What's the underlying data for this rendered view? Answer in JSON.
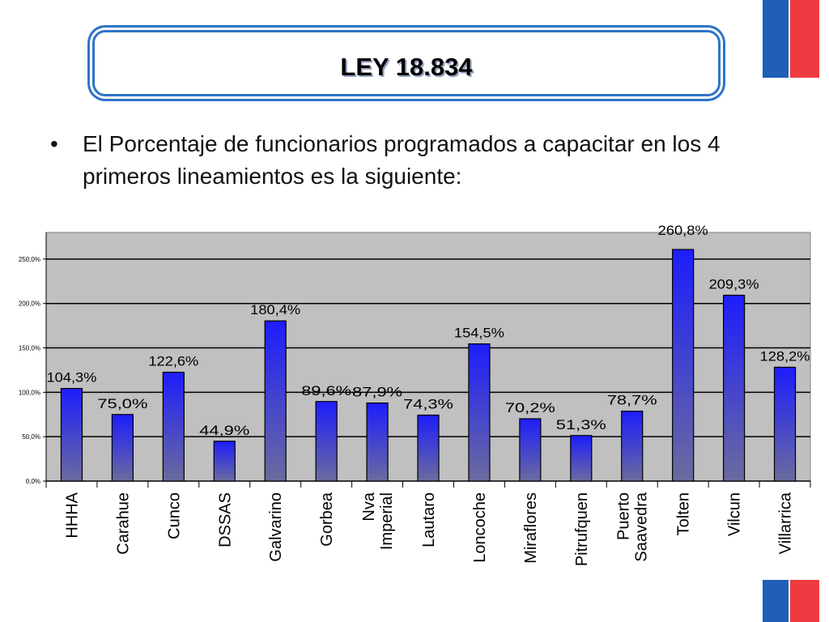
{
  "title": "LEY 18.834",
  "bullet": {
    "symbol": "•",
    "text": "El Porcentaje de funcionarios programados a capacitar en los 4 primeros lineamientos es la siguiente:"
  },
  "colors": {
    "flag_blue": "#1f5fb8",
    "flag_red": "#ee3b42",
    "plot_bg": "#c0c0c0",
    "bar_top": "#1d1dfc",
    "bar_bottom": "#6b6b9e",
    "title_border": "#2e74c9"
  },
  "chart_data": {
    "type": "bar",
    "categories": [
      "HHHA",
      "Carahue",
      "Cunco",
      "DSSAS",
      "Galvarino",
      "Gorbea",
      "Nva Imperial",
      "Lautaro",
      "Loncoche",
      "Miraflores",
      "Pitrufquen",
      "Puerto Saavedra",
      "Tolten",
      "Vilcun",
      "Villarrica"
    ],
    "values": [
      104.3,
      75.0,
      122.6,
      44.9,
      180.4,
      89.6,
      87.9,
      74.3,
      154.5,
      70.2,
      51.3,
      78.7,
      260.8,
      209.3,
      128.2
    ],
    "data_labels": [
      "104,3%",
      "75,0%",
      "122,6%",
      "44,9%",
      "180,4%",
      "89,6%",
      "87,9%",
      "74,3%",
      "154,5%",
      "70,2%",
      "51,3%",
      "78,7%",
      "260,8%",
      "209,3%",
      "128,2%"
    ],
    "yticks": [
      0,
      50,
      100,
      150,
      200,
      250
    ],
    "ytick_labels": [
      "0,0%",
      "50,0%",
      "100,0%",
      "150,0%",
      "200,0%",
      "250,0%"
    ],
    "ylim": [
      0,
      280
    ],
    "grid": true
  }
}
